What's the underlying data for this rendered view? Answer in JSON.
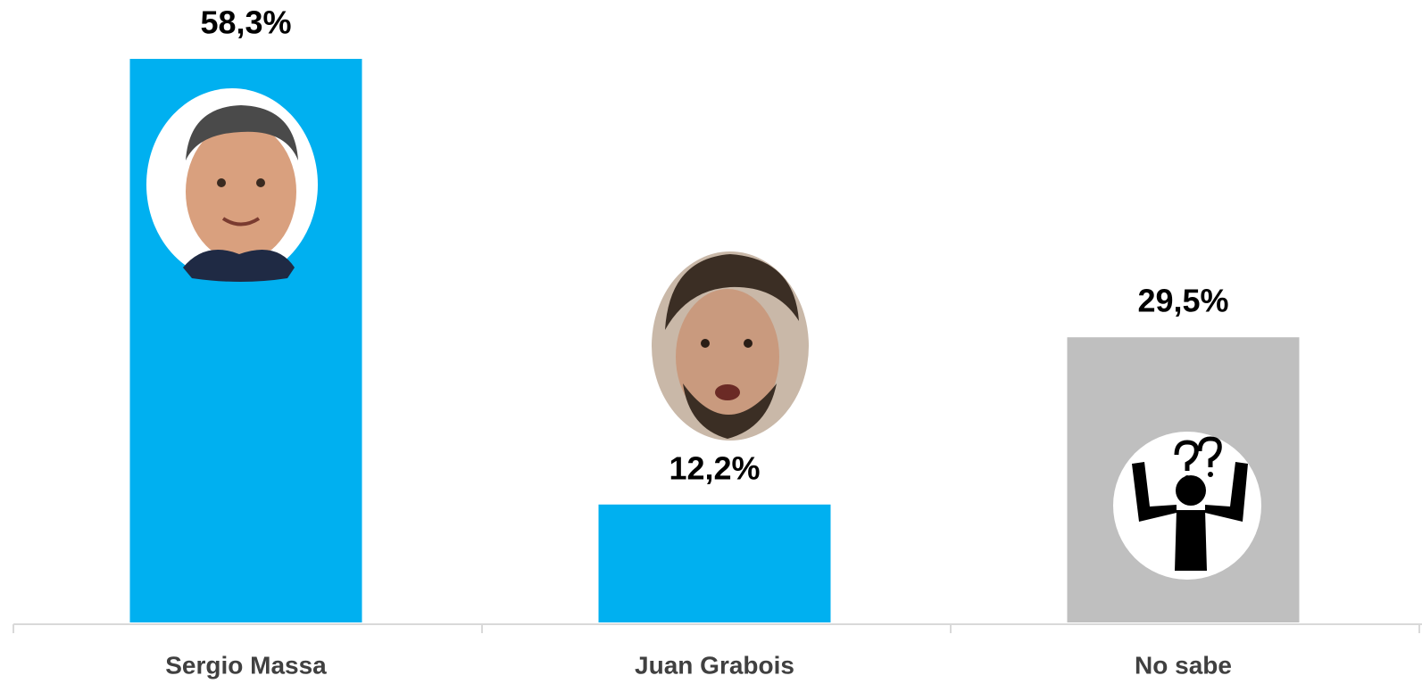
{
  "chart_data": {
    "type": "bar",
    "categories": [
      "Sergio Massa",
      "Juan Grabois",
      "No sabe"
    ],
    "values": [
      58.3,
      12.2,
      29.5
    ],
    "value_labels": [
      "58,3%",
      "12,2%",
      "29,5%"
    ],
    "colors": [
      "#00b0f0",
      "#00b0f0",
      "#bfbfbf"
    ]
  }
}
